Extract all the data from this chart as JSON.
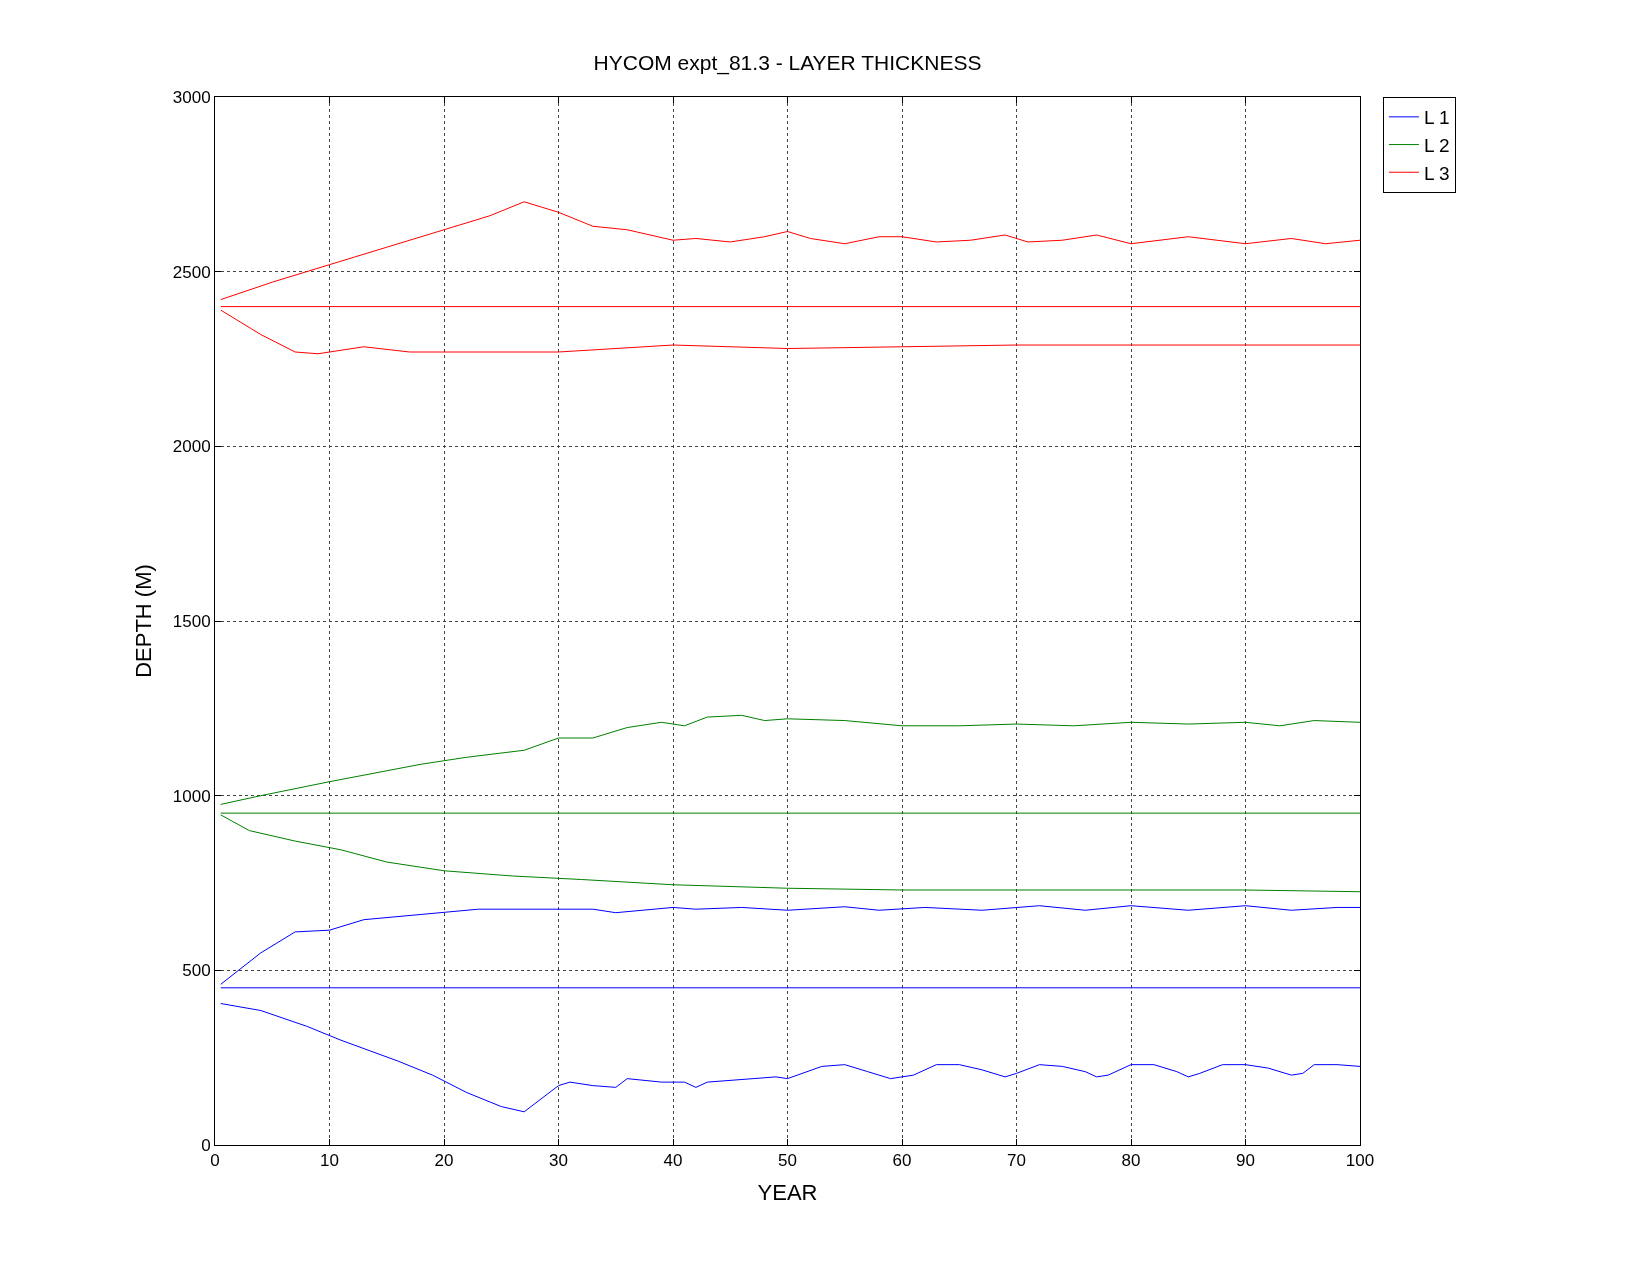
{
  "chart_data": {
    "type": "line",
    "title": "HYCOM expt_81.3 - LAYER THICKNESS",
    "xlabel": "YEAR",
    "ylabel": "DEPTH (M)",
    "xlim": [
      0,
      100
    ],
    "xticks": [
      0,
      10,
      20,
      30,
      40,
      50,
      60,
      70,
      80,
      90,
      100
    ],
    "ylim": [
      0,
      3000
    ],
    "yticks": [
      0,
      500,
      1000,
      1500,
      2000,
      2500,
      3000
    ],
    "grid": true,
    "legend": "top right",
    "line_style": "solid",
    "marker": "none",
    "series": [
      {
        "name": "L 1",
        "color": "#0000ff",
        "x": [
          0.5,
          4,
          8,
          11,
          16,
          19,
          22,
          25,
          27,
          30,
          31,
          33,
          35,
          36,
          39,
          41,
          42,
          43,
          47,
          49,
          50,
          53,
          55,
          57,
          59,
          61,
          63,
          65,
          67,
          69,
          70,
          72,
          74,
          76,
          77,
          78,
          80,
          82,
          84,
          85,
          86,
          88,
          90,
          92,
          94,
          95,
          96,
          98,
          100
        ],
        "values": [
          405,
          385,
          340,
          300,
          240,
          200,
          150,
          110,
          95,
          170,
          180,
          170,
          165,
          190,
          180,
          180,
          165,
          180,
          190,
          195,
          190,
          225,
          230,
          210,
          190,
          200,
          230,
          230,
          215,
          195,
          205,
          230,
          225,
          210,
          195,
          200,
          230,
          230,
          210,
          195,
          205,
          230,
          230,
          220,
          200,
          205,
          230,
          230,
          225
        ]
      },
      {
        "color": "#0000ff",
        "x": [
          0.5,
          100
        ],
        "values": [
          450,
          450
        ]
      },
      {
        "color": "#0000ff",
        "x": [
          0.5,
          4,
          7,
          10,
          13,
          18,
          23,
          33,
          35,
          40,
          42,
          46,
          50,
          55,
          58,
          62,
          67,
          72,
          76,
          80,
          85,
          90,
          94,
          98,
          100
        ],
        "values": [
          460,
          550,
          610,
          615,
          645,
          660,
          675,
          675,
          665,
          680,
          675,
          680,
          672,
          682,
          672,
          680,
          672,
          685,
          672,
          685,
          672,
          685,
          672,
          680,
          680
        ]
      },
      {
        "name": "L 2",
        "color": "#008000",
        "x": [
          0.5,
          3,
          7,
          11,
          15,
          20,
          26,
          32,
          40,
          50,
          60,
          70,
          80,
          90,
          100
        ],
        "values": [
          945,
          900,
          870,
          845,
          810,
          785,
          770,
          760,
          745,
          735,
          730,
          730,
          730,
          730,
          725
        ]
      },
      {
        "color": "#008000",
        "x": [
          0.5,
          100
        ],
        "values": [
          950,
          950
        ]
      },
      {
        "color": "#008000",
        "x": [
          0.5,
          4,
          10,
          18,
          22,
          27,
          30,
          33,
          36,
          39,
          41,
          43,
          46,
          48,
          50,
          55,
          60,
          65,
          70,
          75,
          80,
          85,
          90,
          93,
          96,
          100
        ],
        "values": [
          975,
          1000,
          1040,
          1090,
          1110,
          1130,
          1165,
          1165,
          1195,
          1210,
          1200,
          1225,
          1230,
          1215,
          1220,
          1215,
          1200,
          1200,
          1205,
          1200,
          1210,
          1205,
          1210,
          1200,
          1215,
          1210
        ]
      },
      {
        "name": "L 3",
        "color": "#ff0000",
        "x": [
          0.5,
          4,
          7,
          9,
          13,
          17,
          20,
          30,
          40,
          50,
          60,
          70,
          80,
          90,
          100
        ],
        "values": [
          2390,
          2320,
          2270,
          2265,
          2285,
          2270,
          2270,
          2270,
          2290,
          2280,
          2285,
          2290,
          2290,
          2290,
          2290
        ]
      },
      {
        "color": "#ff0000",
        "x": [
          0.5,
          100
        ],
        "values": [
          2400,
          2400
        ]
      },
      {
        "color": "#ff0000",
        "x": [
          0.5,
          5,
          10,
          15,
          20,
          24,
          27,
          30,
          33,
          36,
          40,
          42,
          45,
          48,
          50,
          52,
          55,
          58,
          60,
          63,
          66,
          69,
          71,
          74,
          77,
          80,
          85,
          90,
          94,
          97,
          100
        ],
        "values": [
          2420,
          2470,
          2520,
          2570,
          2620,
          2660,
          2700,
          2670,
          2630,
          2620,
          2590,
          2595,
          2585,
          2600,
          2615,
          2595,
          2580,
          2600,
          2600,
          2585,
          2590,
          2605,
          2585,
          2590,
          2605,
          2580,
          2600,
          2580,
          2595,
          2580,
          2590
        ]
      }
    ]
  }
}
